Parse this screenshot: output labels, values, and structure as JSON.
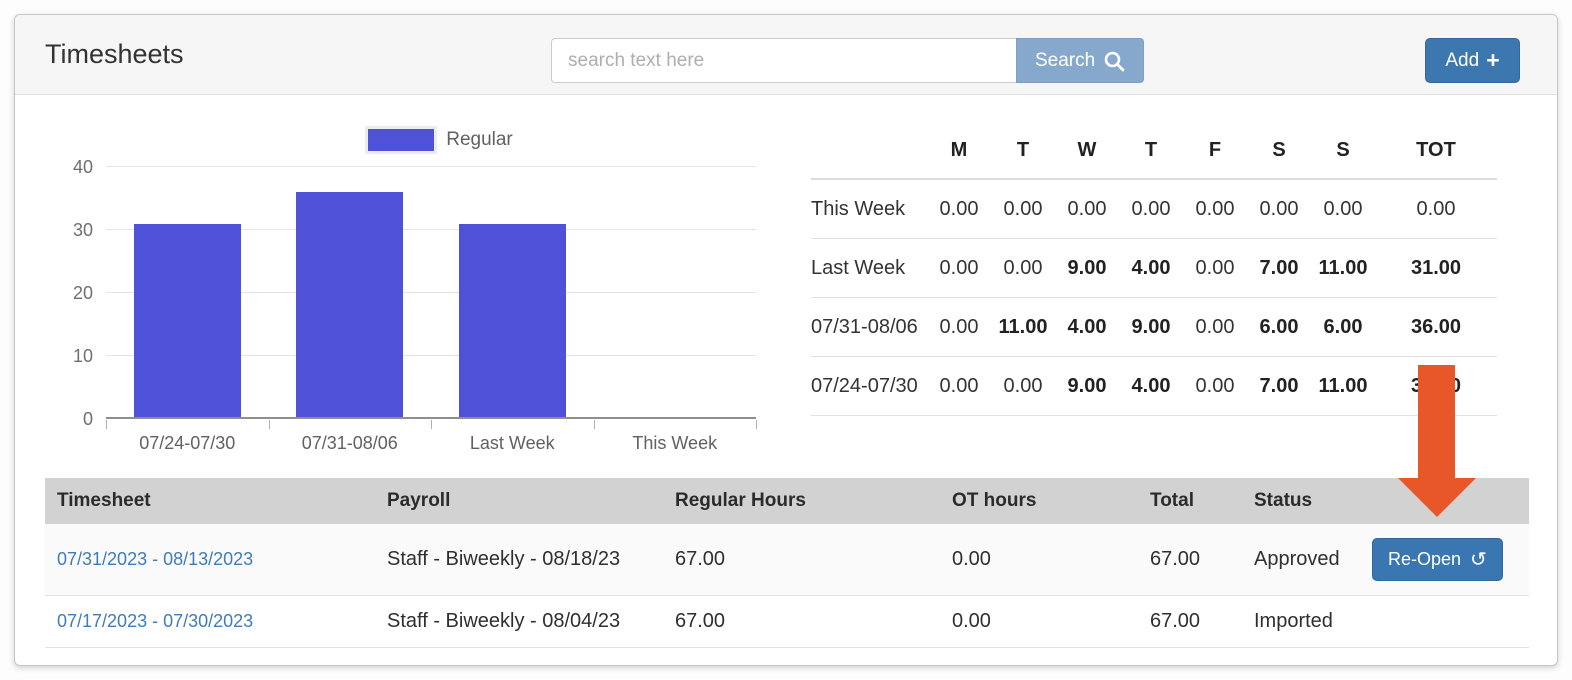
{
  "header": {
    "title": "Timesheets",
    "search_placeholder": "search text here",
    "search_value": "",
    "search_button_label": "Search",
    "add_button_label": "Add"
  },
  "icons": {
    "plus": "+",
    "reopen": "↺",
    "search": "magnifier"
  },
  "chart_data": {
    "type": "bar",
    "title": "",
    "categories": [
      "07/24-07/30",
      "07/31-08/06",
      "Last Week",
      "This Week"
    ],
    "values": [
      31,
      36,
      31,
      0
    ],
    "series_name": "Regular",
    "legend": [
      "Regular"
    ],
    "legend_position": "top",
    "bar_color": "#4e52d8",
    "ylim": [
      0,
      40
    ],
    "yticks": [
      0,
      10,
      20,
      30,
      40
    ],
    "grid": true
  },
  "week_table": {
    "columns": [
      "",
      "M",
      "T",
      "W",
      "T",
      "F",
      "S",
      "S",
      "TOT"
    ],
    "rows": [
      {
        "label": "This Week",
        "cells": [
          "0.00",
          "0.00",
          "0.00",
          "0.00",
          "0.00",
          "0.00",
          "0.00",
          "0.00"
        ]
      },
      {
        "label": "Last Week",
        "cells": [
          "0.00",
          "0.00",
          "9.00",
          "4.00",
          "0.00",
          "7.00",
          "11.00",
          "31.00"
        ]
      },
      {
        "label": "07/31-08/06",
        "cells": [
          "0.00",
          "11.00",
          "4.00",
          "9.00",
          "0.00",
          "6.00",
          "6.00",
          "36.00"
        ]
      },
      {
        "label": "07/24-07/30",
        "cells": [
          "0.00",
          "0.00",
          "9.00",
          "4.00",
          "0.00",
          "7.00",
          "11.00",
          "31.00"
        ]
      }
    ]
  },
  "timesheet_table": {
    "columns": [
      "Timesheet",
      "Payroll",
      "Regular Hours",
      "OT hours",
      "Total",
      "Status",
      ""
    ],
    "rows": [
      {
        "timesheet": "07/31/2023 - 08/13/2023",
        "payroll": "Staff - Biweekly - 08/18/23",
        "regular_hours": "67.00",
        "ot_hours": "0.00",
        "total": "67.00",
        "status": "Approved",
        "action_label": "Re-Open"
      },
      {
        "timesheet": "07/17/2023 - 07/30/2023",
        "payroll": "Staff - Biweekly - 08/04/23",
        "regular_hours": "67.00",
        "ot_hours": "0.00",
        "total": "67.00",
        "status": "Imported",
        "action_label": ""
      }
    ]
  },
  "annotation": {
    "arrow_direction": "down",
    "arrow_color": "#e8572a"
  },
  "colors": {
    "accent_blue": "#3d77b0",
    "search_button_blue": "#87a8cd",
    "bar_blue": "#4e52d8",
    "link_blue": "#3f7cba",
    "table_header_gray": "#d2d2d2",
    "card_header_gray": "#f6f6f6",
    "arrow_orange": "#e8572a"
  }
}
